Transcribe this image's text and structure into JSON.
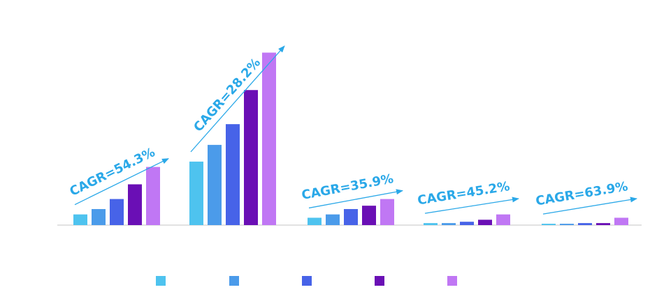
{
  "chart_data": {
    "type": "bar",
    "categories": [
      "",
      "",
      "",
      "",
      ""
    ],
    "series": [
      {
        "color": "#4ec3ef",
        "values": [
          16,
          95,
          11,
          3,
          2
        ]
      },
      {
        "color": "#4b9bea",
        "values": [
          24,
          120,
          16,
          3,
          2
        ]
      },
      {
        "color": "#4763e8",
        "values": [
          39,
          151,
          24,
          5,
          3
        ]
      },
      {
        "color": "#6a0fb5",
        "values": [
          61,
          202,
          29,
          8,
          3
        ]
      },
      {
        "color": "#c077f4",
        "values": [
          87,
          258,
          39,
          16,
          11
        ]
      }
    ],
    "annotations": [
      "CAGR=54.3%",
      "CAGR=28.2%",
      "CAGR=35.9%",
      "CAGR=45.2%",
      "CAGR=63.9%"
    ],
    "ylim": [
      0,
      270
    ],
    "grid": false,
    "legend": "bottom",
    "arrow_color": "#2aa8e8",
    "baseline_color": "#d9d9d9"
  }
}
